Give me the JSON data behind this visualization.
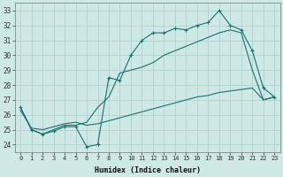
{
  "xlabel": "Humidex (Indice chaleur)",
  "xlim": [
    -0.5,
    23.5
  ],
  "ylim": [
    23.5,
    33.5
  ],
  "xticks": [
    0,
    1,
    2,
    3,
    4,
    5,
    6,
    7,
    8,
    9,
    10,
    11,
    12,
    13,
    14,
    15,
    16,
    17,
    18,
    19,
    20,
    21,
    22,
    23
  ],
  "yticks": [
    24,
    25,
    26,
    27,
    28,
    29,
    30,
    31,
    32,
    33
  ],
  "bg_color": "#cee8e5",
  "line_color": "#1a7070",
  "grid_color": "#aacfcc",
  "line1_x": [
    0,
    1,
    2,
    3,
    4,
    5,
    6,
    7,
    8,
    9,
    10,
    11,
    12,
    13,
    14,
    15,
    16,
    17,
    18,
    19,
    20,
    21,
    22,
    23
  ],
  "line1_y": [
    26.5,
    25.0,
    24.7,
    24.9,
    25.2,
    25.2,
    23.85,
    24.0,
    28.5,
    28.3,
    30.0,
    31.0,
    31.5,
    31.5,
    31.8,
    31.7,
    32.0,
    32.2,
    33.0,
    32.0,
    31.7,
    30.3,
    27.8,
    27.2
  ],
  "line2_x": [
    0,
    1,
    2,
    3,
    4,
    5,
    6,
    7,
    8,
    9,
    10,
    11,
    12,
    13,
    14,
    15,
    16,
    17,
    18,
    19,
    20,
    21,
    22,
    23
  ],
  "line2_y": [
    26.5,
    25.0,
    24.7,
    25.0,
    25.3,
    25.3,
    25.5,
    26.5,
    27.2,
    28.8,
    29.0,
    29.2,
    29.5,
    30.0,
    30.3,
    30.6,
    30.9,
    31.2,
    31.5,
    31.7,
    31.5,
    29.0,
    27.0,
    27.2
  ],
  "line3_x": [
    0,
    1,
    2,
    3,
    4,
    5,
    6,
    7,
    8,
    9,
    10,
    11,
    12,
    13,
    14,
    15,
    16,
    17,
    18,
    19,
    20,
    21,
    22,
    23
  ],
  "line3_y": [
    26.3,
    25.1,
    25.0,
    25.2,
    25.4,
    25.5,
    25.3,
    25.4,
    25.6,
    25.8,
    26.0,
    26.2,
    26.4,
    26.6,
    26.8,
    27.0,
    27.2,
    27.3,
    27.5,
    27.6,
    27.7,
    27.8,
    27.0,
    27.2
  ]
}
